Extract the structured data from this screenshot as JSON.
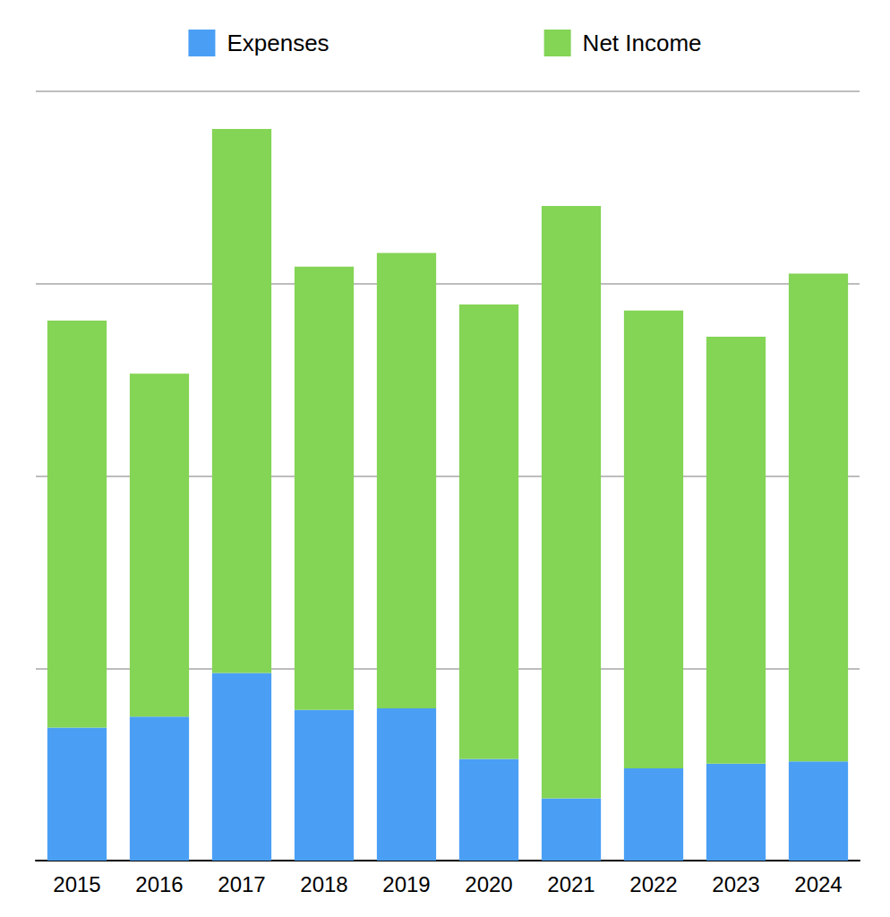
{
  "chart_data": {
    "type": "bar",
    "categories": [
      "2015",
      "2016",
      "2017",
      "2018",
      "2019",
      "2020",
      "2021",
      "2022",
      "2023",
      "2024"
    ],
    "series": [
      {
        "name": "Expenses",
        "color": "#4a9ff5",
        "values": [
          17.3,
          18.7,
          24.4,
          19.6,
          19.8,
          13.2,
          8.1,
          12.0,
          12.6,
          12.9
        ]
      },
      {
        "name": "Net Income",
        "color": "#84d455",
        "values": [
          52.9,
          44.6,
          70.7,
          57.6,
          59.2,
          59.1,
          77.0,
          59.5,
          55.5,
          63.4
        ]
      }
    ],
    "ylim": [
      0,
      100
    ],
    "yticks": [
      0,
      25,
      50,
      75,
      100
    ],
    "stacked": true,
    "grid": true,
    "legend": "top",
    "tick_labels": "x"
  }
}
